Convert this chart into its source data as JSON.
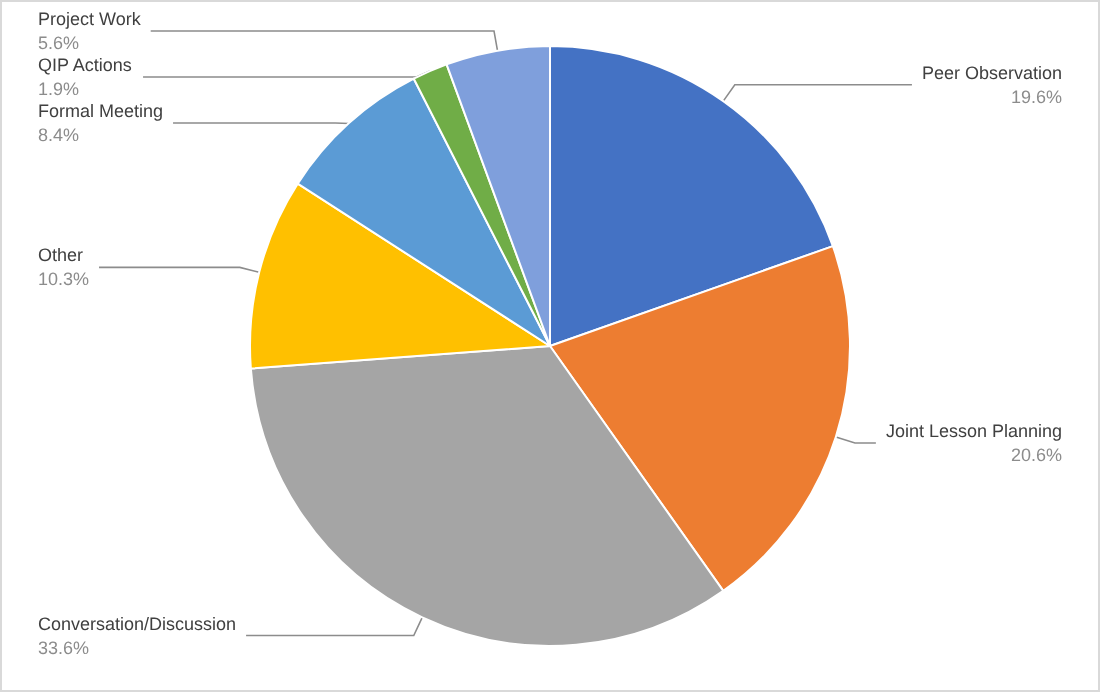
{
  "chart_data": {
    "type": "pie",
    "categories": [
      "Peer Observation",
      "Joint Lesson Planning",
      "Conversation/Discussion",
      "Other",
      "Formal Meeting",
      "QIP Actions",
      "Project Work"
    ],
    "values": [
      19.6,
      20.6,
      33.6,
      10.3,
      8.4,
      1.9,
      5.6
    ],
    "colors": [
      "#4472c4",
      "#ed7d31",
      "#a5a5a5",
      "#ffc000",
      "#5b9bd5",
      "#70ad47",
      "#7f9fdc"
    ],
    "value_labels": [
      "19.6%",
      "20.6%",
      "33.6%",
      "10.3%",
      "8.4%",
      "1.9%",
      "5.6%"
    ],
    "legend": false
  }
}
